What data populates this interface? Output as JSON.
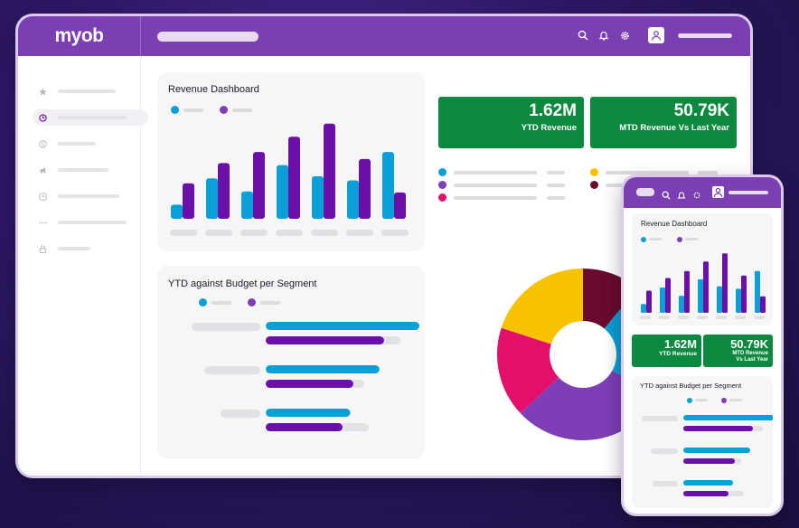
{
  "app": {
    "logo": "myob"
  },
  "colors": {
    "brand": "#7b3fb3",
    "blue": "#0a9fd6",
    "purple": "#6a0fa8",
    "violet": "#7e3fb6",
    "green": "#0b8a3f",
    "pink": "#e3106b",
    "yellow": "#f7c300",
    "maroon": "#6a0a2e"
  },
  "header": {
    "icons": [
      "search-icon",
      "bell-icon",
      "gear-icon",
      "user-icon"
    ]
  },
  "sidebar": {
    "icons": [
      "star-icon",
      "clock-icon",
      "dollar-icon",
      "megaphone-icon",
      "alarm-icon",
      "more-icon",
      "lock-icon"
    ],
    "active_index": 1
  },
  "revenue_card": {
    "title": "Revenue Dashboard"
  },
  "budget_card": {
    "title": "YTD against Budget per Segment"
  },
  "kpis": [
    {
      "value": "1.62M",
      "label": "YTD Revenue"
    },
    {
      "value": "50.79K",
      "label": "MTD Revenue Vs Last Year"
    }
  ],
  "phone": {
    "revenue_title": "Revenue Dashboard",
    "kpis": [
      {
        "value": "1.62M",
        "label": "YTD Revenue"
      },
      {
        "value": "50.79K",
        "label_line1": "MTD Revenue",
        "label_line2": "Vs Last Year"
      }
    ],
    "budget_title": "YTD against Budget per Segment"
  },
  "chart_data": [
    {
      "type": "bar",
      "title": "Revenue Dashboard",
      "categories": [
        "",
        "",
        "",
        "",
        "",
        "",
        ""
      ],
      "series": [
        {
          "color": "#0a9fd6",
          "values": [
            14,
            40,
            27,
            53,
            42,
            38,
            66
          ]
        },
        {
          "color": "#6a0fa8",
          "values": [
            35,
            55,
            66,
            81,
            94,
            59,
            26
          ]
        }
      ],
      "ylim": [
        0,
        100
      ]
    },
    {
      "type": "bar",
      "orientation": "horizontal",
      "title": "YTD against Budget per Segment",
      "categories": [
        "",
        "",
        ""
      ],
      "series": [
        {
          "color": "#0a9fd6",
          "values": [
            100,
            74,
            55
          ]
        },
        {
          "color": "#6a0fa8",
          "values": [
            77,
            57,
            50
          ]
        }
      ],
      "budget": [
        88,
        64,
        67
      ],
      "ylim": [
        0,
        100
      ]
    },
    {
      "type": "pie",
      "donut": true,
      "slices": [
        {
          "color": "#6a0a2e",
          "value": 11
        },
        {
          "color": "#0a9fd6",
          "value": 22
        },
        {
          "color": "#7e3fb6",
          "value": 30
        },
        {
          "color": "#e3106b",
          "value": 17
        },
        {
          "color": "#f7c300",
          "value": 20
        }
      ]
    }
  ]
}
